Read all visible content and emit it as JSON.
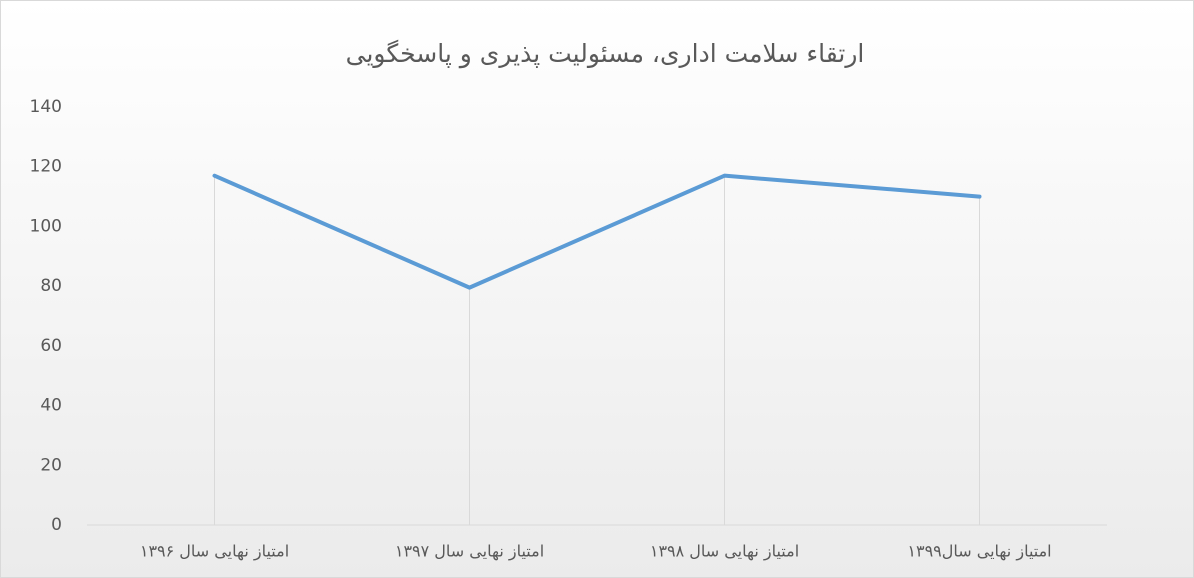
{
  "chart_data": {
    "type": "line",
    "title": "ارتقاء سلامت اداری، مسئولیت پذیری و پاسخگویی",
    "categories": [
      "امتیاز نهایی سال ۱۳۹۶",
      "امتیاز نهایی سال ۱۳۹۷",
      "امتیاز نهایی سال ۱۳۹۸",
      "امتیاز نهایی سال۱۳۹۹"
    ],
    "series": [
      {
        "color": "#5b9bd5",
        "values": [
          117,
          79.5,
          117,
          110
        ]
      }
    ],
    "ylim": [
      0,
      140
    ],
    "yticks": [
      0,
      20,
      40,
      60,
      80,
      100,
      120,
      140
    ],
    "grid": false,
    "drop_lines": true
  }
}
